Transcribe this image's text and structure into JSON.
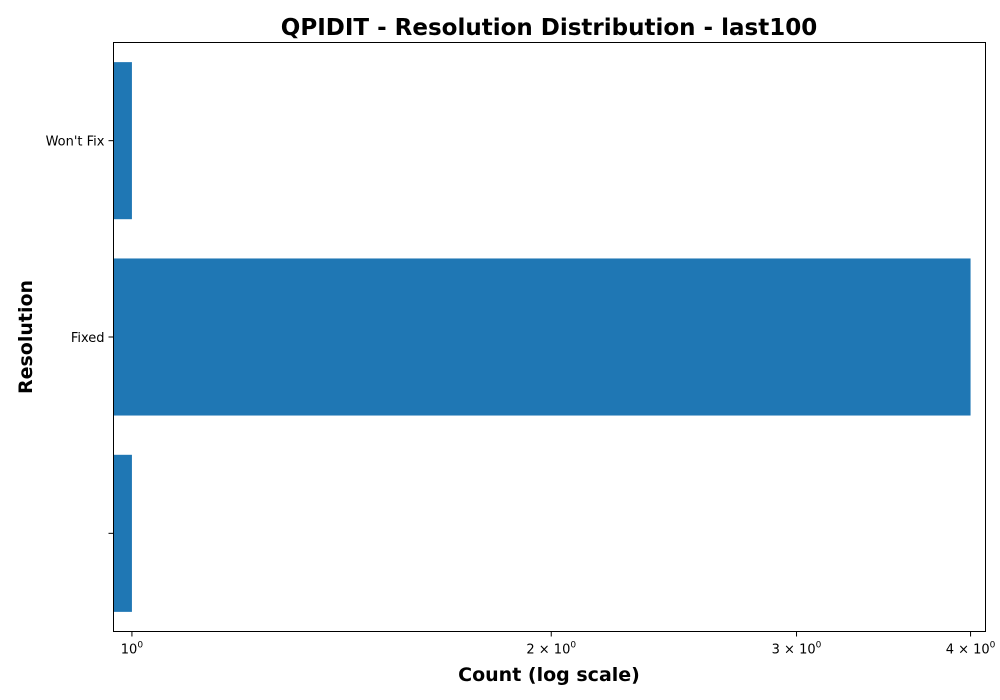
{
  "chart_data": {
    "type": "bar",
    "orientation": "horizontal",
    "title": "QPIDIT - Resolution Distribution - last100",
    "xlabel": "Count (log scale)",
    "ylabel": "Resolution",
    "x_scale": "log",
    "xlim": [
      0.97,
      4.1
    ],
    "categories": [
      "",
      "Fixed",
      "Won't Fix"
    ],
    "values": [
      1,
      4,
      1
    ],
    "bar_color": "#1f77b4",
    "x_ticks": [
      {
        "value": 1,
        "coef": "",
        "base": "10",
        "exp": "0"
      },
      {
        "value": 2,
        "coef": "2 × ",
        "base": "10",
        "exp": "0"
      },
      {
        "value": 3,
        "coef": "3 × ",
        "base": "10",
        "exp": "0"
      },
      {
        "value": 4,
        "coef": "4 × ",
        "base": "10",
        "exp": "0"
      }
    ],
    "grid": false,
    "legend": "none"
  }
}
